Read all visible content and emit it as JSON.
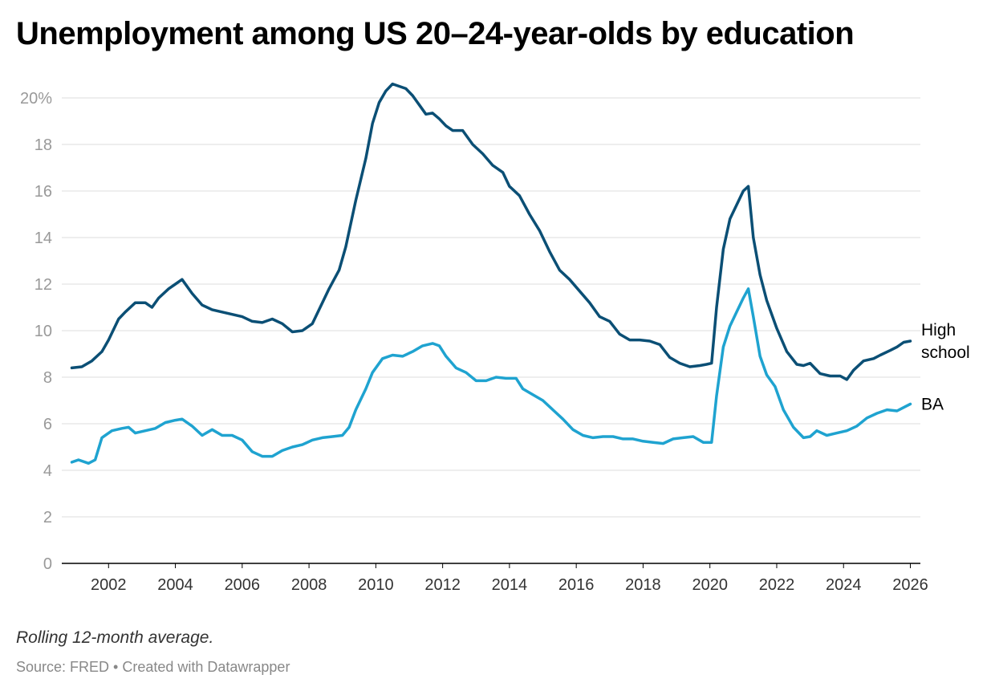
{
  "title": "Unemployment among US 20–24-year-olds by education",
  "note": "Rolling 12-month average.",
  "source": "Source: FRED • Created with Datawrapper",
  "colors": {
    "high_school": "#0b4f75",
    "ba": "#1fa3d0",
    "grid": "#dddddd",
    "axis_text": "#999999"
  },
  "chart_data": {
    "type": "line",
    "title": "Unemployment among US 20–24-year-olds by education",
    "xlabel": "",
    "ylabel": "",
    "xlim": [
      2000.6,
      2026.3
    ],
    "ylim": [
      0,
      20
    ],
    "y_ticks": [
      0,
      2,
      4,
      6,
      8,
      10,
      12,
      14,
      16,
      18,
      20
    ],
    "y_tick_labels": [
      "0",
      "2",
      "4",
      "6",
      "8",
      "10",
      "12",
      "14",
      "16",
      "18",
      "20%"
    ],
    "x_ticks": [
      2002,
      2004,
      2006,
      2008,
      2010,
      2012,
      2014,
      2016,
      2018,
      2020,
      2022,
      2024,
      2026
    ],
    "x_tick_labels": [
      "2002",
      "2004",
      "2006",
      "2008",
      "2010",
      "2012",
      "2014",
      "2016",
      "2018",
      "2020",
      "2022",
      "2024",
      "2026"
    ],
    "grid": true,
    "legend": "direct labels at line ends",
    "series": [
      {
        "name": "High school",
        "color": "#0b4f75",
        "points": [
          [
            2000.9,
            8.4
          ],
          [
            2001.2,
            8.45
          ],
          [
            2001.5,
            8.7
          ],
          [
            2001.8,
            9.1
          ],
          [
            2002.0,
            9.6
          ],
          [
            2002.3,
            10.5
          ],
          [
            2002.5,
            10.8
          ],
          [
            2002.8,
            11.2
          ],
          [
            2003.1,
            11.2
          ],
          [
            2003.3,
            11.0
          ],
          [
            2003.5,
            11.4
          ],
          [
            2003.8,
            11.8
          ],
          [
            2004.0,
            12.0
          ],
          [
            2004.2,
            12.2
          ],
          [
            2004.5,
            11.6
          ],
          [
            2004.8,
            11.1
          ],
          [
            2005.1,
            10.9
          ],
          [
            2005.4,
            10.8
          ],
          [
            2005.7,
            10.7
          ],
          [
            2006.0,
            10.6
          ],
          [
            2006.3,
            10.4
          ],
          [
            2006.6,
            10.35
          ],
          [
            2006.9,
            10.5
          ],
          [
            2007.2,
            10.3
          ],
          [
            2007.5,
            9.95
          ],
          [
            2007.8,
            10.0
          ],
          [
            2008.1,
            10.3
          ],
          [
            2008.3,
            10.9
          ],
          [
            2008.6,
            11.8
          ],
          [
            2008.9,
            12.6
          ],
          [
            2009.1,
            13.6
          ],
          [
            2009.4,
            15.6
          ],
          [
            2009.7,
            17.4
          ],
          [
            2009.9,
            18.9
          ],
          [
            2010.1,
            19.8
          ],
          [
            2010.3,
            20.3
          ],
          [
            2010.5,
            20.6
          ],
          [
            2010.7,
            20.5
          ],
          [
            2010.9,
            20.4
          ],
          [
            2011.1,
            20.1
          ],
          [
            2011.3,
            19.7
          ],
          [
            2011.5,
            19.3
          ],
          [
            2011.7,
            19.35
          ],
          [
            2011.9,
            19.1
          ],
          [
            2012.1,
            18.8
          ],
          [
            2012.3,
            18.6
          ],
          [
            2012.6,
            18.6
          ],
          [
            2012.9,
            18.0
          ],
          [
            2013.2,
            17.6
          ],
          [
            2013.5,
            17.1
          ],
          [
            2013.8,
            16.8
          ],
          [
            2014.0,
            16.2
          ],
          [
            2014.3,
            15.8
          ],
          [
            2014.6,
            15.0
          ],
          [
            2014.9,
            14.3
          ],
          [
            2015.2,
            13.4
          ],
          [
            2015.5,
            12.6
          ],
          [
            2015.8,
            12.2
          ],
          [
            2016.1,
            11.7
          ],
          [
            2016.4,
            11.2
          ],
          [
            2016.7,
            10.6
          ],
          [
            2017.0,
            10.4
          ],
          [
            2017.3,
            9.85
          ],
          [
            2017.6,
            9.6
          ],
          [
            2017.9,
            9.6
          ],
          [
            2018.2,
            9.55
          ],
          [
            2018.5,
            9.4
          ],
          [
            2018.8,
            8.85
          ],
          [
            2019.1,
            8.6
          ],
          [
            2019.4,
            8.45
          ],
          [
            2019.7,
            8.5
          ],
          [
            2019.9,
            8.55
          ],
          [
            2020.05,
            8.6
          ],
          [
            2020.2,
            11.0
          ],
          [
            2020.4,
            13.5
          ],
          [
            2020.6,
            14.8
          ],
          [
            2020.8,
            15.4
          ],
          [
            2021.0,
            16.0
          ],
          [
            2021.15,
            16.2
          ],
          [
            2021.3,
            14.0
          ],
          [
            2021.5,
            12.4
          ],
          [
            2021.7,
            11.3
          ],
          [
            2022.0,
            10.1
          ],
          [
            2022.3,
            9.1
          ],
          [
            2022.6,
            8.55
          ],
          [
            2022.8,
            8.5
          ],
          [
            2023.0,
            8.6
          ],
          [
            2023.3,
            8.15
          ],
          [
            2023.6,
            8.05
          ],
          [
            2023.9,
            8.05
          ],
          [
            2024.1,
            7.9
          ],
          [
            2024.3,
            8.3
          ],
          [
            2024.6,
            8.7
          ],
          [
            2024.9,
            8.8
          ],
          [
            2025.1,
            8.95
          ],
          [
            2025.4,
            9.15
          ],
          [
            2025.6,
            9.3
          ],
          [
            2025.8,
            9.5
          ],
          [
            2026.0,
            9.55
          ]
        ]
      },
      {
        "name": "BA",
        "color": "#1fa3d0",
        "points": [
          [
            2000.9,
            4.35
          ],
          [
            2001.1,
            4.45
          ],
          [
            2001.4,
            4.3
          ],
          [
            2001.6,
            4.45
          ],
          [
            2001.8,
            5.4
          ],
          [
            2002.1,
            5.7
          ],
          [
            2002.4,
            5.8
          ],
          [
            2002.6,
            5.85
          ],
          [
            2002.8,
            5.6
          ],
          [
            2003.1,
            5.7
          ],
          [
            2003.4,
            5.8
          ],
          [
            2003.7,
            6.05
          ],
          [
            2004.0,
            6.15
          ],
          [
            2004.2,
            6.2
          ],
          [
            2004.5,
            5.9
          ],
          [
            2004.8,
            5.5
          ],
          [
            2005.1,
            5.75
          ],
          [
            2005.4,
            5.5
          ],
          [
            2005.7,
            5.5
          ],
          [
            2006.0,
            5.3
          ],
          [
            2006.3,
            4.8
          ],
          [
            2006.6,
            4.6
          ],
          [
            2006.9,
            4.6
          ],
          [
            2007.2,
            4.85
          ],
          [
            2007.5,
            5.0
          ],
          [
            2007.8,
            5.1
          ],
          [
            2008.1,
            5.3
          ],
          [
            2008.4,
            5.4
          ],
          [
            2008.7,
            5.45
          ],
          [
            2009.0,
            5.5
          ],
          [
            2009.2,
            5.85
          ],
          [
            2009.4,
            6.6
          ],
          [
            2009.7,
            7.5
          ],
          [
            2009.9,
            8.2
          ],
          [
            2010.2,
            8.8
          ],
          [
            2010.5,
            8.95
          ],
          [
            2010.8,
            8.9
          ],
          [
            2011.1,
            9.1
          ],
          [
            2011.4,
            9.35
          ],
          [
            2011.7,
            9.45
          ],
          [
            2011.9,
            9.35
          ],
          [
            2012.1,
            8.9
          ],
          [
            2012.4,
            8.4
          ],
          [
            2012.7,
            8.2
          ],
          [
            2013.0,
            7.85
          ],
          [
            2013.3,
            7.85
          ],
          [
            2013.6,
            8.0
          ],
          [
            2013.9,
            7.95
          ],
          [
            2014.2,
            7.95
          ],
          [
            2014.4,
            7.5
          ],
          [
            2014.7,
            7.25
          ],
          [
            2015.0,
            7.0
          ],
          [
            2015.3,
            6.6
          ],
          [
            2015.6,
            6.2
          ],
          [
            2015.9,
            5.75
          ],
          [
            2016.2,
            5.5
          ],
          [
            2016.5,
            5.4
          ],
          [
            2016.8,
            5.45
          ],
          [
            2017.1,
            5.45
          ],
          [
            2017.4,
            5.35
          ],
          [
            2017.7,
            5.35
          ],
          [
            2018.0,
            5.25
          ],
          [
            2018.3,
            5.2
          ],
          [
            2018.6,
            5.15
          ],
          [
            2018.9,
            5.35
          ],
          [
            2019.2,
            5.4
          ],
          [
            2019.5,
            5.45
          ],
          [
            2019.8,
            5.2
          ],
          [
            2020.05,
            5.2
          ],
          [
            2020.2,
            7.2
          ],
          [
            2020.4,
            9.3
          ],
          [
            2020.6,
            10.2
          ],
          [
            2020.8,
            10.8
          ],
          [
            2021.0,
            11.4
          ],
          [
            2021.15,
            11.8
          ],
          [
            2021.3,
            10.6
          ],
          [
            2021.5,
            8.9
          ],
          [
            2021.7,
            8.1
          ],
          [
            2021.95,
            7.6
          ],
          [
            2022.2,
            6.6
          ],
          [
            2022.5,
            5.85
          ],
          [
            2022.8,
            5.4
          ],
          [
            2023.0,
            5.45
          ],
          [
            2023.2,
            5.7
          ],
          [
            2023.5,
            5.5
          ],
          [
            2023.8,
            5.6
          ],
          [
            2024.1,
            5.7
          ],
          [
            2024.4,
            5.9
          ],
          [
            2024.7,
            6.25
          ],
          [
            2025.0,
            6.45
          ],
          [
            2025.3,
            6.6
          ],
          [
            2025.6,
            6.55
          ],
          [
            2025.8,
            6.7
          ],
          [
            2026.0,
            6.85
          ]
        ]
      }
    ],
    "end_labels": [
      {
        "series": "High school",
        "lines": [
          "High",
          "school"
        ]
      },
      {
        "series": "BA",
        "lines": [
          "BA"
        ]
      }
    ]
  }
}
